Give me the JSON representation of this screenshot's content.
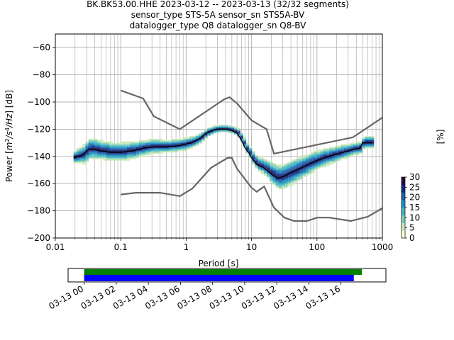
{
  "chart_data": [
    {
      "type": "heatmap",
      "title_lines": [
        "BK.BK53.00.HHE   2023-03-12 -- 2023-03-13  (32/32 segments)",
        "sensor_type STS-5A sensor_sn STS5A-BV",
        "datalogger_type Q8 datalogger_sn Q8-BV"
      ],
      "xlabel": "Period [s]",
      "ylabel_parts": [
        "Power [",
        "m",
        "2",
        "/s",
        "4",
        "/Hz",
        "] [dB]"
      ],
      "x_scale": "log",
      "xlim": [
        0.01,
        1000
      ],
      "ylim": [
        -200,
        -50
      ],
      "x_ticks": [
        {
          "value": 0.01,
          "label": "0.01"
        },
        {
          "value": 0.1,
          "label": "0.1"
        },
        {
          "value": 1,
          "label": "1"
        },
        {
          "value": 10,
          "label": "10"
        },
        {
          "value": 100,
          "label": "100"
        },
        {
          "value": 1000,
          "label": "1000"
        }
      ],
      "y_ticks": [
        {
          "value": -60,
          "label": "−60"
        },
        {
          "value": -80,
          "label": "−80"
        },
        {
          "value": -100,
          "label": "−100"
        },
        {
          "value": -120,
          "label": "−120"
        },
        {
          "value": -140,
          "label": "−140"
        },
        {
          "value": -160,
          "label": "−160"
        },
        {
          "value": -180,
          "label": "−180"
        },
        {
          "value": -200,
          "label": "−200"
        }
      ],
      "grid": true,
      "colorbar": {
        "label": "[%]",
        "range": [
          0,
          30
        ],
        "ticks": [
          {
            "value": 0,
            "label": "0"
          },
          {
            "value": 5,
            "label": "5"
          },
          {
            "value": 10,
            "label": "10"
          },
          {
            "value": 15,
            "label": "15"
          },
          {
            "value": 20,
            "label": "20"
          },
          {
            "value": 25,
            "label": "25"
          },
          {
            "value": 30,
            "label": "30"
          }
        ],
        "colors": [
          "#ffffd9",
          "#c7e9b4",
          "#7fcdbb",
          "#41b6c4",
          "#1d91c0",
          "#225ea8",
          "#0c2c84",
          "#2a0a4a"
        ]
      },
      "noise_model_high": [
        [
          0.1,
          -91.5
        ],
        [
          0.22,
          -97.4
        ],
        [
          0.32,
          -110.5
        ],
        [
          0.8,
          -120
        ],
        [
          3.8,
          -98
        ],
        [
          4.6,
          -96.5
        ],
        [
          6.0,
          -101
        ],
        [
          10,
          -113.5
        ],
        [
          17,
          -120
        ],
        [
          22,
          -138
        ],
        [
          354,
          -126
        ],
        [
          1000,
          -111.5
        ]
      ],
      "noise_model_low": [
        [
          0.1,
          -168
        ],
        [
          0.17,
          -166.7
        ],
        [
          0.4,
          -166.7
        ],
        [
          0.8,
          -169.2
        ],
        [
          1.24,
          -163.7
        ],
        [
          2.4,
          -148.4
        ],
        [
          4.3,
          -141.1
        ],
        [
          5.0,
          -141.1
        ],
        [
          6.0,
          -149
        ],
        [
          10,
          -163
        ],
        [
          12,
          -166
        ],
        [
          15.6,
          -162.1
        ],
        [
          21.9,
          -177.5
        ],
        [
          31.6,
          -185
        ],
        [
          45,
          -187.5
        ],
        [
          70,
          -187.5
        ],
        [
          101,
          -185
        ],
        [
          154,
          -185
        ],
        [
          328,
          -187.5
        ],
        [
          600,
          -184.4
        ],
        [
          1000,
          -178
        ]
      ],
      "median": [
        [
          0.019,
          -141
        ],
        [
          0.022,
          -140
        ],
        [
          0.026,
          -139
        ],
        [
          0.03,
          -136
        ],
        [
          0.033,
          -134.5
        ],
        [
          0.04,
          -135
        ],
        [
          0.05,
          -136
        ],
        [
          0.07,
          -137
        ],
        [
          0.1,
          -137
        ],
        [
          0.15,
          -136
        ],
        [
          0.22,
          -134
        ],
        [
          0.3,
          -133
        ],
        [
          0.5,
          -133
        ],
        [
          0.8,
          -132
        ],
        [
          1.2,
          -130
        ],
        [
          1.6,
          -127
        ],
        [
          2.0,
          -123
        ],
        [
          2.5,
          -121
        ],
        [
          3.0,
          -120
        ],
        [
          4.0,
          -120
        ],
        [
          5.0,
          -121
        ],
        [
          6.0,
          -123
        ],
        [
          7.0,
          -128
        ],
        [
          8.0,
          -134
        ],
        [
          9.0,
          -137
        ],
        [
          10,
          -141
        ],
        [
          12,
          -146
        ],
        [
          15,
          -148
        ],
        [
          18,
          -151
        ],
        [
          20,
          -153
        ],
        [
          25,
          -156
        ],
        [
          30,
          -155
        ],
        [
          40,
          -152
        ],
        [
          60,
          -148
        ],
        [
          80,
          -145
        ],
        [
          100,
          -143
        ],
        [
          150,
          -140
        ],
        [
          250,
          -137
        ],
        [
          350,
          -135
        ],
        [
          450,
          -134
        ],
        [
          500,
          -130
        ],
        [
          700,
          -130
        ]
      ],
      "spread": [
        [
          0.019,
          3
        ],
        [
          0.03,
          6
        ],
        [
          0.05,
          5
        ],
        [
          0.1,
          5
        ],
        [
          0.2,
          4
        ],
        [
          0.5,
          3
        ],
        [
          1,
          3
        ],
        [
          2,
          2
        ],
        [
          3,
          1.5
        ],
        [
          5,
          1.5
        ],
        [
          7,
          2
        ],
        [
          10,
          3
        ],
        [
          15,
          4
        ],
        [
          25,
          7
        ],
        [
          40,
          7
        ],
        [
          60,
          6
        ],
        [
          100,
          5
        ],
        [
          200,
          4
        ],
        [
          350,
          3
        ],
        [
          500,
          3
        ],
        [
          700,
          3
        ]
      ],
      "time_axis": {
        "tick_labels": [
          "03-13 00",
          "03-13 02",
          "03-13 04",
          "03-13 06",
          "03-13 08",
          "03-13 10",
          "03-13 12",
          "03-13 14",
          "03-13 16"
        ],
        "start_hour": -1,
        "end_hour": 18.8,
        "data_start_hour": 0,
        "green_bar_end_hour": 17.3,
        "blue_bar_end_hour": 16.8,
        "green_color": "#008000",
        "blue_color": "#0000ff"
      }
    }
  ]
}
